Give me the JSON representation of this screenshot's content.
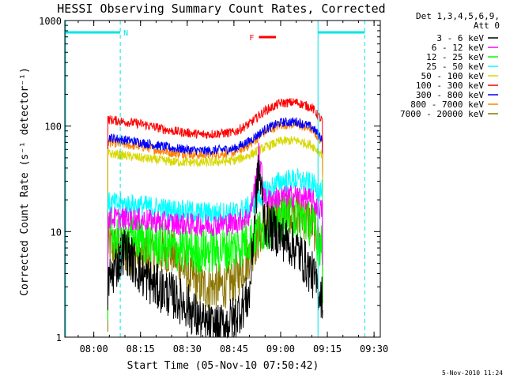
{
  "chart_data": {
    "type": "line",
    "title": "HESSI Observing Summary Count Rates, Corrected",
    "xlabel": "Start Time (05-Nov-10 07:50:42)",
    "ylabel": "Corrected Count Rate (s⁻¹ detector⁻¹)",
    "yscale": "log",
    "ylim": [
      1,
      1000
    ],
    "xlim_minutes": [
      "07:50:42",
      "09:32:00"
    ],
    "xticks": [
      "08:00",
      "08:15",
      "08:30",
      "08:45",
      "09:00",
      "09:15",
      "09:30"
    ],
    "yticks": [
      "1",
      "10",
      "100",
      "1000"
    ],
    "legend_header": [
      "Det 1,3,4,5,6,9,",
      "Att 0"
    ],
    "legend_position": "right",
    "footer": "5-Nov-2010 11:24",
    "flags": [
      {
        "label": "N",
        "color": "#00e5e5",
        "start": "07:50:42",
        "end": "08:08:30"
      },
      {
        "label": "",
        "color": "#00e5e5",
        "start": "09:12:00",
        "end": "09:27:00"
      },
      {
        "label": "F",
        "color": "#ff0000",
        "start": "08:53:00",
        "end": "08:58:30"
      }
    ],
    "vlines": [
      {
        "time": "08:08:30",
        "color": "#00e5e5",
        "style": "dashed"
      },
      {
        "time": "09:12:00",
        "color": "#00e5e5",
        "style": "solid"
      },
      {
        "time": "09:27:00",
        "color": "#00e5e5",
        "style": "dashed"
      }
    ],
    "data_start": "08:04:30",
    "data_end": "09:13:30",
    "series": [
      {
        "name": "3 - 6 keV",
        "color": "#000000",
        "x": [
          "08:05",
          "08:10",
          "08:15",
          "08:20",
          "08:25",
          "08:30",
          "08:35",
          "08:40",
          "08:45",
          "08:50",
          "08:52",
          "08:53",
          "08:55",
          "09:00",
          "09:05",
          "09:10",
          "09:13"
        ],
        "y": [
          3.5,
          7,
          4,
          3,
          2.5,
          2,
          1.3,
          1.2,
          1.5,
          2.5,
          20,
          40,
          12,
          9,
          7,
          4,
          2.5
        ]
      },
      {
        "name": "6 - 12 keV",
        "color": "#ff00ff",
        "x": [
          "08:05",
          "08:15",
          "08:25",
          "08:35",
          "08:45",
          "08:50",
          "08:52",
          "08:53",
          "08:55",
          "09:00",
          "09:05",
          "09:10",
          "09:13"
        ],
        "y": [
          13.5,
          13,
          12,
          11.5,
          12,
          14,
          30,
          55,
          20,
          21,
          22,
          20,
          16
        ]
      },
      {
        "name": "12 - 25 keV",
        "color": "#00ff00",
        "x": [
          "08:05",
          "08:15",
          "08:25",
          "08:35",
          "08:45",
          "08:50",
          "08:55",
          "09:00",
          "09:05",
          "09:10",
          "09:13"
        ],
        "y": [
          9.5,
          8.5,
          7,
          6.5,
          7,
          8.5,
          11,
          13,
          14,
          12,
          7
        ]
      },
      {
        "name": "25 - 50 keV",
        "color": "#00ffff",
        "x": [
          "08:05",
          "08:15",
          "08:25",
          "08:35",
          "08:45",
          "08:50",
          "08:55",
          "09:00",
          "09:05",
          "09:10",
          "09:13"
        ],
        "y": [
          18.5,
          17.5,
          16,
          15,
          15,
          17,
          24,
          30,
          31,
          28,
          24
        ]
      },
      {
        "name": "50 - 100 keV",
        "color": "#d8d800",
        "x": [
          "08:05",
          "08:15",
          "08:25",
          "08:35",
          "08:45",
          "08:50",
          "08:55",
          "09:00",
          "09:05",
          "09:10",
          "09:13"
        ],
        "y": [
          55,
          50,
          46,
          45,
          47,
          53,
          63,
          72,
          73,
          66,
          55
        ]
      },
      {
        "name": "100 - 300 keV",
        "color": "#ff0000",
        "x": [
          "08:05",
          "08:15",
          "08:25",
          "08:35",
          "08:45",
          "08:50",
          "08:55",
          "09:00",
          "09:05",
          "09:10",
          "09:13"
        ],
        "y": [
          115,
          105,
          90,
          83,
          87,
          105,
          140,
          165,
          168,
          150,
          115
        ]
      },
      {
        "name": "300 - 800 keV",
        "color": "#0000ff",
        "x": [
          "08:05",
          "08:15",
          "08:25",
          "08:35",
          "08:45",
          "08:50",
          "08:55",
          "09:00",
          "09:05",
          "09:10",
          "09:13"
        ],
        "y": [
          78,
          70,
          62,
          58,
          61,
          72,
          93,
          108,
          110,
          98,
          78
        ]
      },
      {
        "name": "800 - 7000 keV",
        "color": "#ff8000",
        "x": [
          "08:05",
          "08:15",
          "08:25",
          "08:35",
          "08:45",
          "08:50",
          "08:55",
          "09:00",
          "09:05",
          "09:10",
          "09:13"
        ],
        "y": [
          70,
          64,
          56,
          53,
          56,
          66,
          88,
          103,
          104,
          93,
          72
        ]
      },
      {
        "name": "7000 - 20000 keV",
        "color": "#8b7500",
        "x": [
          "08:05",
          "08:10",
          "08:15",
          "08:20",
          "08:25",
          "08:30",
          "08:35",
          "08:40",
          "08:45",
          "08:50",
          "08:55",
          "09:00",
          "09:05",
          "09:10",
          "09:13"
        ],
        "y": [
          7.5,
          6.5,
          6,
          6,
          6.5,
          4,
          3,
          3,
          3.3,
          6,
          12,
          16,
          16,
          12,
          8
        ]
      }
    ]
  }
}
